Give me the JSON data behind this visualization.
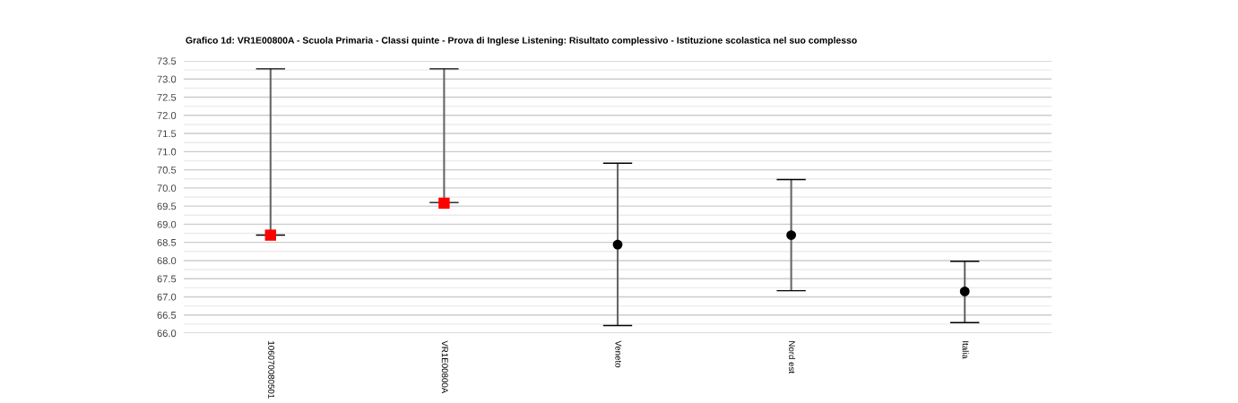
{
  "chart_data": {
    "type": "scatter",
    "title": "Grafico 1d: VR1E00800A - Scuola Primaria - Classi quinte - Prova di Inglese Listening: Risultato complessivo - Istituzione scolastica nel suo complesso",
    "categories": [
      "106070080501",
      "VR1E00800A",
      "Veneto",
      "Nord est",
      "Italia"
    ],
    "series": [
      {
        "color": "#ff0000",
        "marker": "square",
        "values": [
          68.7,
          69.58,
          null,
          null,
          null
        ],
        "errors": [
          [
            68.7,
            73.28
          ],
          [
            69.6,
            73.28
          ],
          null,
          null,
          null
        ]
      },
      {
        "color": "#000000",
        "marker": "circle",
        "values": [
          null,
          null,
          68.44,
          68.7,
          67.15
        ],
        "errors": [
          null,
          null,
          [
            66.21,
            70.68
          ],
          [
            67.17,
            70.23
          ],
          [
            66.29,
            67.98
          ]
        ]
      }
    ],
    "ylim": [
      66,
      73.5
    ],
    "yticks": [
      {
        "value": 66,
        "label": "66.0"
      },
      {
        "value": 66.25,
        "label": null
      },
      {
        "value": 66.5,
        "label": "66.5"
      },
      {
        "value": 66.75,
        "label": null
      },
      {
        "value": 67,
        "label": "67.0"
      },
      {
        "value": 67.25,
        "label": null
      },
      {
        "value": 67.5,
        "label": "67.5"
      },
      {
        "value": 67.75,
        "label": null
      },
      {
        "value": 68,
        "label": "68.0"
      },
      {
        "value": 68.25,
        "label": null
      },
      {
        "value": 68.5,
        "label": "68.5"
      },
      {
        "value": 68.75,
        "label": null
      },
      {
        "value": 69,
        "label": "69.0"
      },
      {
        "value": 69.25,
        "label": null
      },
      {
        "value": 69.5,
        "label": "69.5"
      },
      {
        "value": 69.75,
        "label": null
      },
      {
        "value": 70,
        "label": "70.0"
      },
      {
        "value": 70.25,
        "label": null
      },
      {
        "value": 70.5,
        "label": "70.5"
      },
      {
        "value": 70.75,
        "label": null
      },
      {
        "value": 71,
        "label": "71.0"
      },
      {
        "value": 71.25,
        "label": null
      },
      {
        "value": 71.5,
        "label": "71.5"
      },
      {
        "value": 71.75,
        "label": null
      },
      {
        "value": 72,
        "label": "72.0"
      },
      {
        "value": 72.25,
        "label": null
      },
      {
        "value": 72.5,
        "label": "72.5"
      },
      {
        "value": 72.75,
        "label": null
      },
      {
        "value": 73,
        "label": "73.0"
      },
      {
        "value": 73.25,
        "label": null
      },
      {
        "value": 73.5,
        "label": "73.5"
      }
    ],
    "grid": "y"
  }
}
